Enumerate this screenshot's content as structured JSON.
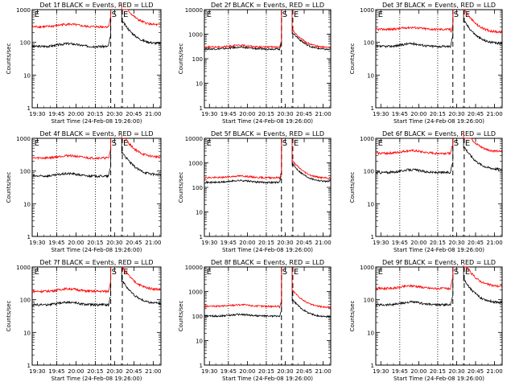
{
  "figure": {
    "colors": {
      "events": "#000000",
      "lld": "#ff0000",
      "axis": "#000000",
      "background": "#ffffff"
    }
  },
  "chart_data": [
    {
      "type": "line",
      "title": "Det 1f BLACK = Events, RED = LLD",
      "xlabel": "Start Time (24-Feb-08 19:26:00)",
      "ylabel": "Counts/sec",
      "yscale": "log",
      "ylim": [
        1,
        1000
      ],
      "x_ticks": [
        "19:30",
        "19:45",
        "20:00",
        "20:15",
        "20:30",
        "20:45",
        "21:00"
      ],
      "y_ticks": [
        "1",
        "10",
        "100",
        "1000"
      ],
      "markers": [
        {
          "label": "E",
          "x": "19:27"
        },
        {
          "label": "S",
          "x": "20:27"
        },
        {
          "label": "E",
          "x": "20:36"
        }
      ],
      "series": [
        {
          "name": "Events",
          "color": "#000000",
          "base": 75,
          "mid": 90
        },
        {
          "name": "LLD",
          "color": "#ff0000",
          "base": 300,
          "mid": 330
        }
      ]
    },
    {
      "type": "line",
      "title": "Det 2f BLACK = Events, RED = LLD",
      "xlabel": "Start Time (24-Feb-08 19:26:00)",
      "ylabel": "Counts/sec",
      "yscale": "log",
      "ylim": [
        1,
        10000
      ],
      "x_ticks": [
        "19:30",
        "19:45",
        "20:00",
        "20:15",
        "20:30",
        "20:45",
        "21:00"
      ],
      "y_ticks": [
        "1",
        "10",
        "100",
        "1000",
        "10000"
      ],
      "markers": [
        {
          "label": "E",
          "x": "19:27"
        },
        {
          "label": "S",
          "x": "20:27"
        },
        {
          "label": "E",
          "x": "20:36"
        }
      ],
      "series": [
        {
          "name": "Events",
          "color": "#000000",
          "base": 250,
          "mid": 230
        },
        {
          "name": "LLD",
          "color": "#ff0000",
          "base": 300,
          "mid": 280
        }
      ]
    },
    {
      "type": "line",
      "title": "Det 3f BLACK = Events, RED = LLD",
      "xlabel": "Start Time (24-Feb-08 19:26:00)",
      "ylabel": "Counts/sec",
      "yscale": "log",
      "ylim": [
        1,
        1000
      ],
      "x_ticks": [
        "19:30",
        "19:45",
        "20:00",
        "20:15",
        "20:30",
        "20:45",
        "21:00"
      ],
      "y_ticks": [
        "1",
        "10",
        "100",
        "1000"
      ],
      "markers": [
        {
          "label": "E",
          "x": "19:27"
        },
        {
          "label": "S",
          "x": "20:27"
        },
        {
          "label": "E",
          "x": "20:36"
        }
      ],
      "series": [
        {
          "name": "Events",
          "color": "#000000",
          "base": 75,
          "mid": 90
        },
        {
          "name": "LLD",
          "color": "#ff0000",
          "base": 250,
          "mid": 200
        }
      ]
    },
    {
      "type": "line",
      "title": "Det 4f BLACK = Events, RED = LLD",
      "xlabel": "Start Time (24-Feb-08 19:26:00)",
      "ylabel": "Counts/sec",
      "yscale": "log",
      "ylim": [
        1,
        1000
      ],
      "x_ticks": [
        "19:30",
        "19:45",
        "20:00",
        "20:15",
        "20:30",
        "20:45",
        "21:00"
      ],
      "y_ticks": [
        "1",
        "10",
        "100",
        "1000"
      ],
      "markers": [
        {
          "label": "E",
          "x": "19:27"
        },
        {
          "label": "S",
          "x": "20:27"
        },
        {
          "label": "E",
          "x": "20:36"
        }
      ],
      "series": [
        {
          "name": "Events",
          "color": "#000000",
          "base": 70,
          "mid": 75
        },
        {
          "name": "LLD",
          "color": "#ff0000",
          "base": 250,
          "mid": 260
        }
      ]
    },
    {
      "type": "line",
      "title": "Det 5f BLACK = Events, RED = LLD",
      "xlabel": "Start Time (24-Feb-08 19:26:00)",
      "ylabel": "Counts/sec",
      "yscale": "log",
      "ylim": [
        1,
        10000
      ],
      "x_ticks": [
        "19:30",
        "19:45",
        "20:00",
        "20:15",
        "20:30",
        "20:45",
        "21:00"
      ],
      "y_ticks": [
        "1",
        "10",
        "100",
        "1000",
        "10000"
      ],
      "markers": [
        {
          "label": "E",
          "x": "19:27"
        },
        {
          "label": "S",
          "x": "20:27"
        },
        {
          "label": "E",
          "x": "20:36"
        }
      ],
      "series": [
        {
          "name": "Events",
          "color": "#000000",
          "base": 160,
          "mid": 170
        },
        {
          "name": "LLD",
          "color": "#ff0000",
          "base": 250,
          "mid": 230
        }
      ]
    },
    {
      "type": "line",
      "title": "Det 6f BLACK = Events, RED = LLD",
      "xlabel": "Start Time (24-Feb-08 19:26:00)",
      "ylabel": "Counts/sec",
      "yscale": "log",
      "ylim": [
        1,
        1000
      ],
      "x_ticks": [
        "19:30",
        "19:45",
        "20:00",
        "20:15",
        "20:30",
        "20:45",
        "21:00"
      ],
      "y_ticks": [
        "1",
        "10",
        "100",
        "1000"
      ],
      "markers": [
        {
          "label": "E",
          "x": "19:27"
        },
        {
          "label": "S",
          "x": "20:27"
        },
        {
          "label": "E",
          "x": "20:36"
        }
      ],
      "series": [
        {
          "name": "Events",
          "color": "#000000",
          "base": 90,
          "mid": 110
        },
        {
          "name": "LLD",
          "color": "#ff0000",
          "base": 350,
          "mid": 380
        }
      ]
    },
    {
      "type": "line",
      "title": "Det 7f BLACK = Events, RED = LLD",
      "xlabel": "Start Time (24-Feb-08 19:26:00)",
      "ylabel": "Counts/sec",
      "yscale": "log",
      "ylim": [
        1,
        1000
      ],
      "x_ticks": [
        "19:30",
        "19:45",
        "20:00",
        "20:15",
        "20:30",
        "20:45",
        "21:00"
      ],
      "y_ticks": [
        "1",
        "10",
        "100",
        "1000"
      ],
      "markers": [
        {
          "label": "E",
          "x": "19:27"
        },
        {
          "label": "S",
          "x": "20:27"
        },
        {
          "label": "E",
          "x": "20:36"
        }
      ],
      "series": [
        {
          "name": "Events",
          "color": "#000000",
          "base": 70,
          "mid": 75
        },
        {
          "name": "LLD",
          "color": "#ff0000",
          "base": 180,
          "mid": 200
        }
      ]
    },
    {
      "type": "line",
      "title": "Det 8f BLACK = Events, RED = LLD",
      "xlabel": "Start Time (24-Feb-08 19:26:00)",
      "ylabel": "Counts/sec",
      "yscale": "log",
      "ylim": [
        1,
        10000
      ],
      "x_ticks": [
        "19:30",
        "19:45",
        "20:00",
        "20:15",
        "20:30",
        "20:45",
        "21:00"
      ],
      "y_ticks": [
        "1",
        "10",
        "100",
        "1000",
        "10000"
      ],
      "markers": [
        {
          "label": "E",
          "x": "19:27"
        },
        {
          "label": "S",
          "x": "20:27"
        },
        {
          "label": "E",
          "x": "20:36"
        }
      ],
      "series": [
        {
          "name": "Events",
          "color": "#000000",
          "base": 100,
          "mid": 90
        },
        {
          "name": "LLD",
          "color": "#ff0000",
          "base": 250,
          "mid": 220
        }
      ]
    },
    {
      "type": "line",
      "title": "Det 9f BLACK = Events, RED = LLD",
      "xlabel": "Start Time (24-Feb-08 19:26:00)",
      "ylabel": "Counts/sec",
      "yscale": "log",
      "ylim": [
        1,
        1000
      ],
      "x_ticks": [
        "19:30",
        "19:45",
        "20:00",
        "20:15",
        "20:30",
        "20:45",
        "21:00"
      ],
      "y_ticks": [
        "1",
        "10",
        "100",
        "1000"
      ],
      "markers": [
        {
          "label": "E",
          "x": "19:27"
        },
        {
          "label": "S",
          "x": "20:27"
        },
        {
          "label": "E",
          "x": "20:36"
        }
      ],
      "series": [
        {
          "name": "Events",
          "color": "#000000",
          "base": 70,
          "mid": 80
        },
        {
          "name": "LLD",
          "color": "#ff0000",
          "base": 220,
          "mid": 250
        }
      ]
    }
  ]
}
